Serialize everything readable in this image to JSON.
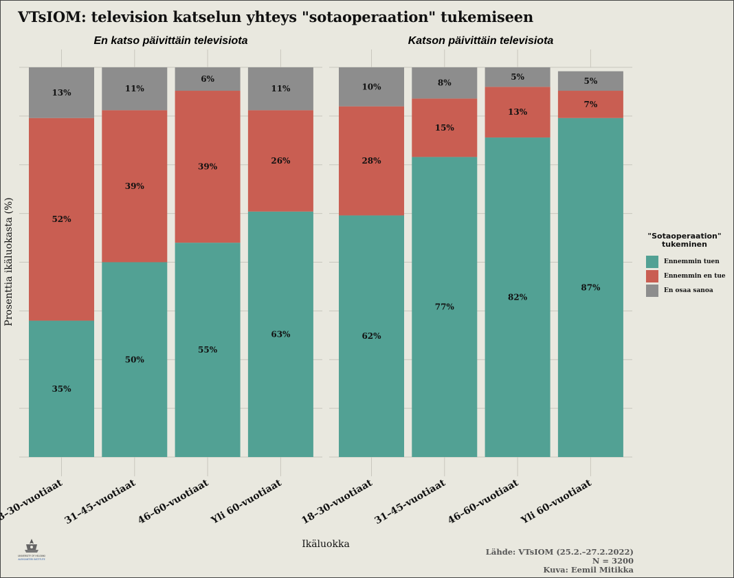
{
  "title": "VTsIOM: television katselun yhteys \"sotaoperaation\" tukemiseen",
  "colors": {
    "background": "#e9e8df",
    "ennemmin_tuen": "#52a194",
    "ennemmin_en_tue": "#c95e52",
    "en_osaa_sanoa": "#8d8d8d"
  },
  "legend": {
    "title_line1": "\"Sotaoperaation\"",
    "title_line2": "tukeminen",
    "items": [
      "Ennemmin tuen",
      "Ennemmin en tue",
      "En osaa sanoa"
    ]
  },
  "source": {
    "line1": "Lähde: VTsIOM (25.2.–27.2.2022)",
    "line2": "N = 3200",
    "line3": "Kuva: Eemil Mitikka"
  },
  "logo": {
    "icon": "university-of-helsinki-logo",
    "line1": "UNIVERSITY OF HELSINKI",
    "line2": "ALEKSANTERI INSTITUTE"
  },
  "chart_data": {
    "type": "bar",
    "stacked": true,
    "xlabel": "Ikäluokka",
    "ylabel": "Prosenttia ikäluokasta (%)",
    "ylim": [
      0,
      100
    ],
    "grid": true,
    "legend_position": "right",
    "categories": [
      "18–30-vuotiaat",
      "31–45-vuotiaat",
      "46–60-vuotiaat",
      "Yli 60-vuotiaat"
    ],
    "panels": [
      {
        "title": "En katso päivittäin televisiota",
        "series": [
          {
            "name": "Ennemmin tuen",
            "values": [
              35,
              50,
              55,
              63
            ]
          },
          {
            "name": "Ennemmin en tue",
            "values": [
              52,
              39,
              39,
              26
            ]
          },
          {
            "name": "En osaa sanoa",
            "values": [
              13,
              11,
              6,
              11
            ]
          }
        ]
      },
      {
        "title": "Katson päivittäin televisiota",
        "series": [
          {
            "name": "Ennemmin tuen",
            "values": [
              62,
              77,
              82,
              87
            ]
          },
          {
            "name": "Ennemmin en tue",
            "values": [
              28,
              15,
              13,
              7
            ]
          },
          {
            "name": "En osaa sanoa",
            "values": [
              10,
              8,
              5,
              5
            ]
          }
        ]
      }
    ]
  }
}
